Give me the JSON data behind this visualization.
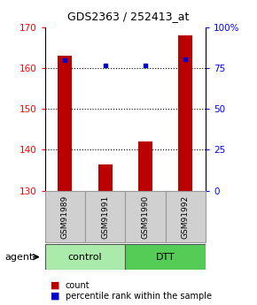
{
  "title": "GDS2363 / 252413_at",
  "samples": [
    "GSM91989",
    "GSM91991",
    "GSM91990",
    "GSM91992"
  ],
  "counts": [
    163.0,
    136.5,
    142.0,
    168.0
  ],
  "percentiles": [
    80.0,
    76.5,
    76.5,
    80.5
  ],
  "ylim_left": [
    130,
    170
  ],
  "ylim_right": [
    0,
    100
  ],
  "yticks_left": [
    130,
    140,
    150,
    160,
    170
  ],
  "yticks_right": [
    0,
    25,
    50,
    75,
    100
  ],
  "ytick_labels_right": [
    "0",
    "25",
    "50",
    "75",
    "100%"
  ],
  "bar_color": "#bb0000",
  "dot_color": "#0000cc",
  "groups": [
    {
      "label": "control",
      "samples": [
        0,
        1
      ],
      "color": "#aaeaaa"
    },
    {
      "label": "DTT",
      "samples": [
        2,
        3
      ],
      "color": "#55cc55"
    }
  ],
  "agent_label": "agent",
  "legend_count_label": "count",
  "legend_pct_label": "percentile rank within the sample",
  "background_color": "#ffffff",
  "sample_box_color": "#d0d0d0",
  "sample_box_edge": "#999999",
  "gridline_ticks": [
    140,
    150,
    160
  ]
}
